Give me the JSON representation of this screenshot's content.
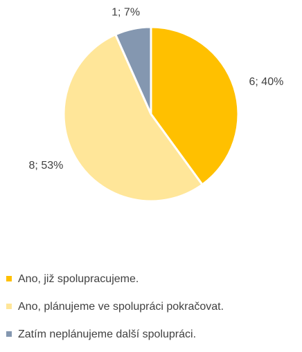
{
  "chart_data": {
    "type": "pie",
    "categories": [
      "Ano, již spolupracujeme.",
      "Ano, plánujeme ve spolupráci pokračovat.",
      "Zatím neplánujeme další spolupráci."
    ],
    "values": [
      6,
      8,
      1
    ],
    "value_labels": [
      "6; 40%",
      "8; 53%",
      "1; 7%"
    ],
    "colors": [
      "#FFC000",
      "#FFE699",
      "#8497B0"
    ]
  }
}
